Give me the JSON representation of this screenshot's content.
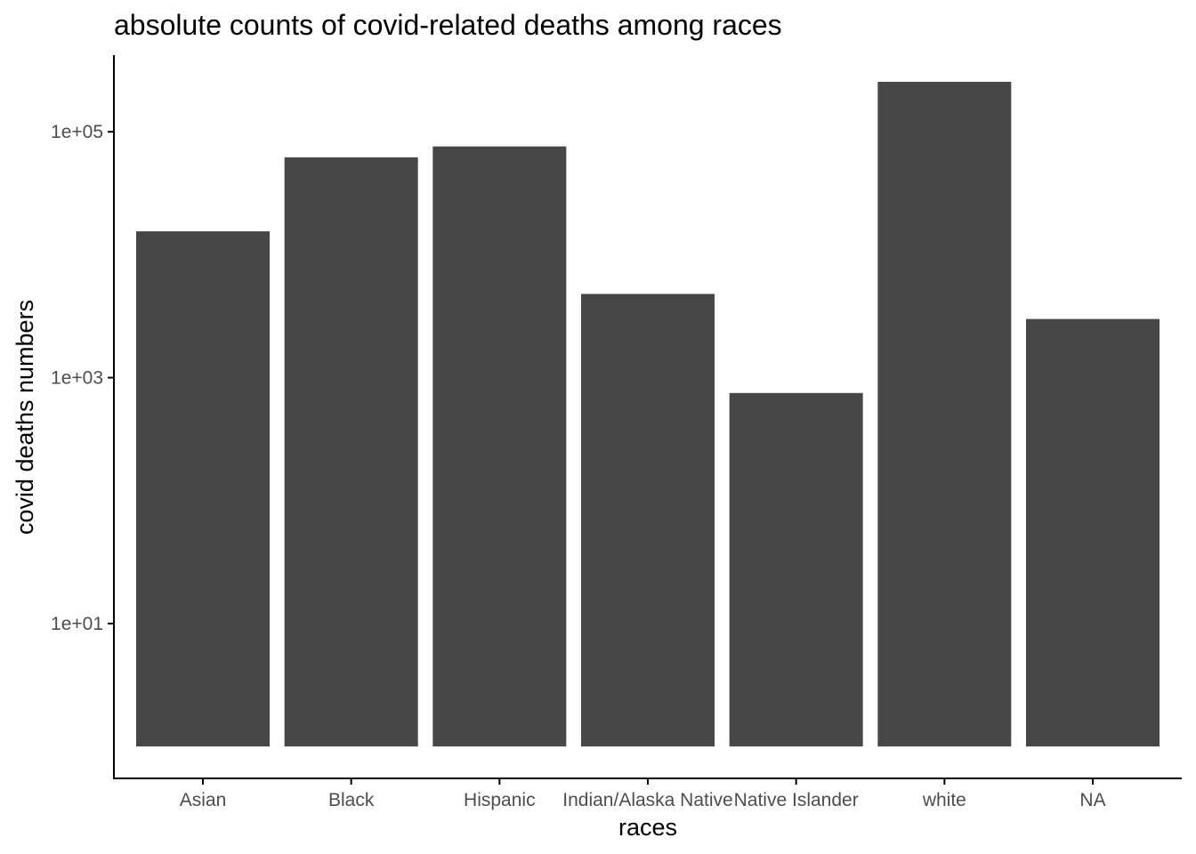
{
  "chart_data": {
    "type": "bar",
    "title": "absolute counts of covid-related deaths among races",
    "xlabel": "races",
    "ylabel": "covid deaths numbers",
    "categories": [
      "Asian",
      "Black",
      "Hispanic",
      "Indian/Alaska Native",
      "Native Islander",
      "white",
      "NA"
    ],
    "values": [
      15500,
      62000,
      76000,
      4800,
      750,
      255000,
      3000
    ],
    "y_scale": "log10",
    "y_ticks": [
      10,
      1000,
      100000
    ],
    "y_tick_labels": [
      "1e+01",
      "1e+03",
      "1e+05"
    ],
    "ylim": [
      0.55,
      420000
    ],
    "bar_baseline": 1,
    "grid": false,
    "legend": "none",
    "colors": {
      "bar": "#474747",
      "axis": "#000000",
      "tick_label": "#4d4d4d"
    }
  }
}
